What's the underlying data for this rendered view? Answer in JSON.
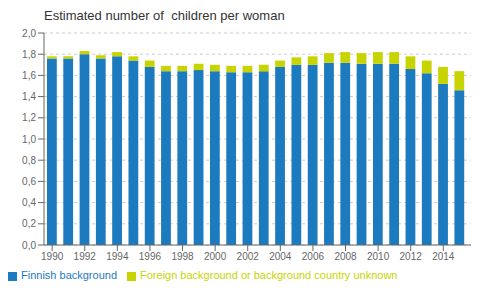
{
  "chart_data": {
    "type": "bar",
    "stacked": true,
    "title": "Estimated number of  children per woman",
    "x": [
      1990,
      1991,
      1992,
      1993,
      1994,
      1995,
      1996,
      1997,
      1998,
      1999,
      2000,
      2001,
      2002,
      2003,
      2004,
      2005,
      2006,
      2007,
      2008,
      2009,
      2010,
      2011,
      2012,
      2013,
      2014,
      2015
    ],
    "series": [
      {
        "name": "Finnish background",
        "color": "#1c7abf",
        "values": [
          1.76,
          1.76,
          1.8,
          1.76,
          1.78,
          1.74,
          1.68,
          1.64,
          1.64,
          1.65,
          1.64,
          1.63,
          1.63,
          1.64,
          1.68,
          1.7,
          1.7,
          1.72,
          1.72,
          1.71,
          1.71,
          1.71,
          1.66,
          1.62,
          1.52,
          1.46
        ]
      },
      {
        "name": "Foreign background or background country  unknown",
        "color": "#c8d400",
        "values": [
          0.02,
          0.02,
          0.03,
          0.03,
          0.04,
          0.04,
          0.06,
          0.05,
          0.05,
          0.06,
          0.06,
          0.06,
          0.06,
          0.06,
          0.06,
          0.07,
          0.08,
          0.09,
          0.1,
          0.1,
          0.11,
          0.11,
          0.12,
          0.12,
          0.16,
          0.18
        ]
      }
    ],
    "xlim": [
      1989.5,
      2015.7
    ],
    "xticks": [
      1990,
      1992,
      1994,
      1996,
      1998,
      2000,
      2002,
      2004,
      2006,
      2008,
      2010,
      2012,
      2014
    ],
    "ylim": [
      0,
      2.0
    ],
    "yticks": [
      {
        "value": 0.0,
        "label": "0,0"
      },
      {
        "value": 0.2,
        "label": "0,2"
      },
      {
        "value": 0.4,
        "label": "0,4"
      },
      {
        "value": 0.6,
        "label": "0,6"
      },
      {
        "value": 0.8,
        "label": "0,8"
      },
      {
        "value": 1.0,
        "label": "1,0"
      },
      {
        "value": 1.2,
        "label": "1,2"
      },
      {
        "value": 1.4,
        "label": "1,4"
      },
      {
        "value": 1.6,
        "label": "1,6"
      },
      {
        "value": 1.8,
        "label": "1,8"
      },
      {
        "value": 2.0,
        "label": "2,0"
      }
    ],
    "grid": true,
    "legend": "lower left"
  }
}
